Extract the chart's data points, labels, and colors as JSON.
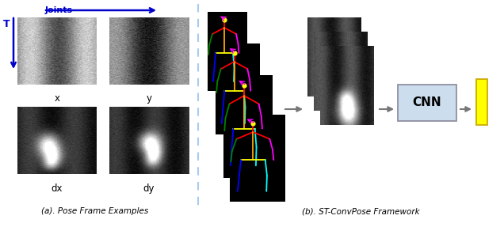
{
  "title_a": "(a). Pose Frame Examples",
  "title_b": "(b). ST-ConvPose Framework",
  "label_x": "x",
  "label_y": "y",
  "label_dx": "dx",
  "label_dy": "dy",
  "label_joints": "Joints",
  "label_T": "T",
  "label_cnn": "CNN",
  "bg_color": "#ffffff",
  "arrow_color_blue": "#0000cc",
  "dashed_line_color": "#aaccee",
  "cnn_box_color": "#ccdded",
  "cnn_box_edge": "#888899",
  "yellow_bar_color": "#ffff00",
  "yellow_bar_edge": "#ccaa00",
  "arrow_gray": "#777777",
  "fig_width": 6.36,
  "fig_height": 3.06,
  "dpi": 100
}
